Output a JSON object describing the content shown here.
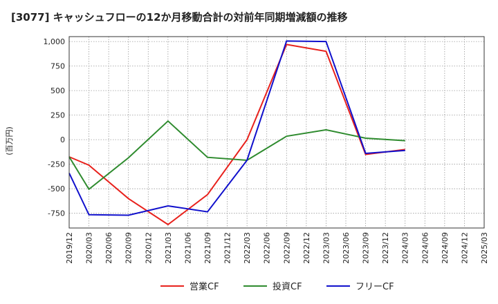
{
  "chart_data": {
    "type": "line",
    "title": "[3077]  キャッシュフローの12か月移動合計の対前年同期増減額の推移",
    "ylabel": "(百万円)",
    "xlabel": "",
    "ylim": [
      -900,
      1050
    ],
    "yticks": [
      -750,
      -500,
      -250,
      0,
      250,
      500,
      750,
      1000
    ],
    "ytick_labels": [
      "-750",
      "-500",
      "-250",
      "0",
      "250",
      "500",
      "750",
      "1,000"
    ],
    "categories": [
      "2019/12",
      "2020/03",
      "2020/06",
      "2020/09",
      "2020/12",
      "2021/03",
      "2021/06",
      "2021/09",
      "2021/12",
      "2022/03",
      "2022/06",
      "2022/09",
      "2022/12",
      "2023/03",
      "2023/06",
      "2023/09",
      "2023/12",
      "2024/03",
      "2024/06",
      "2024/09",
      "2024/12",
      "2025/03"
    ],
    "grid": true,
    "legend_position": "bottom",
    "series": [
      {
        "name": "営業CF",
        "color": "#e8211c",
        "values": [
          -175,
          -260,
          null,
          -600,
          null,
          -865,
          null,
          -560,
          null,
          0,
          null,
          970,
          null,
          900,
          null,
          -150,
          null,
          -100,
          null,
          null,
          null,
          null
        ]
      },
      {
        "name": "投資CF",
        "color": "#2e8b2e",
        "values": [
          -175,
          -505,
          null,
          -185,
          null,
          190,
          null,
          -180,
          null,
          -210,
          null,
          35,
          null,
          100,
          null,
          15,
          null,
          -10,
          null,
          null,
          null,
          null
        ]
      },
      {
        "name": "フリーCF",
        "color": "#1010cc",
        "values": [
          -340,
          -765,
          null,
          -770,
          null,
          -675,
          null,
          -735,
          null,
          -210,
          null,
          1005,
          null,
          1000,
          null,
          -140,
          null,
          -110,
          null,
          null,
          null,
          null
        ]
      }
    ]
  }
}
